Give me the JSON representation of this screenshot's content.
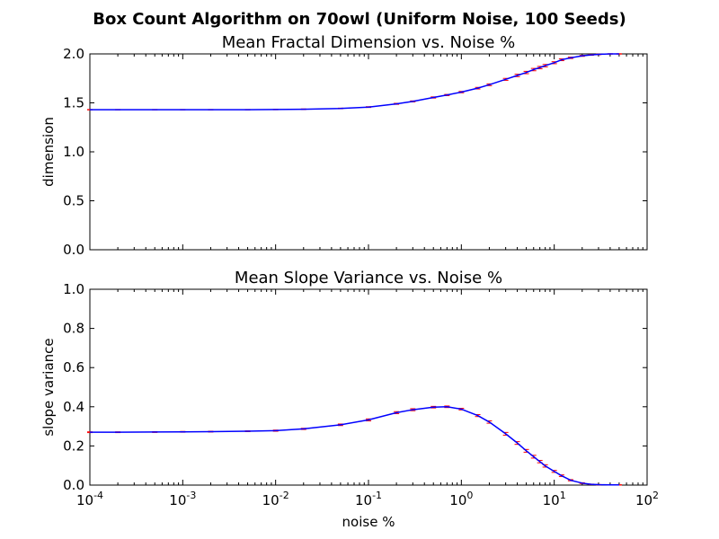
{
  "figure": {
    "suptitle": "Box Count Algorithm on 70owl (Uniform Noise, 100 Seeds)",
    "xlabel": "noise %",
    "line_color": "#0000ff",
    "error_color": "#ff0000"
  },
  "chart_data": [
    {
      "type": "line",
      "title": "Mean Fractal Dimension vs. Noise %",
      "xlabel": "",
      "ylabel": "dimension",
      "xscale": "log",
      "xlim": [
        0.0001,
        100
      ],
      "ylim": [
        0,
        2
      ],
      "x_ticks": [
        {
          "base": "10",
          "exp": "-4",
          "value": 0.0001
        },
        {
          "base": "10",
          "exp": "-3",
          "value": 0.001
        },
        {
          "base": "10",
          "exp": "-2",
          "value": 0.01
        },
        {
          "base": "10",
          "exp": "-1",
          "value": 0.1
        },
        {
          "base": "10",
          "exp": "0",
          "value": 1
        },
        {
          "base": "10",
          "exp": "1",
          "value": 10
        },
        {
          "base": "10",
          "exp": "2",
          "value": 100
        }
      ],
      "x_tick_labels_visible": false,
      "y_ticks": [
        "0.0",
        "0.5",
        "1.0",
        "1.5",
        "2.0"
      ],
      "grid": false,
      "x": [
        0.0001,
        0.0002,
        0.0005,
        0.001,
        0.002,
        0.005,
        0.01,
        0.02,
        0.05,
        0.1,
        0.2,
        0.3,
        0.5,
        0.7,
        1,
        1.5,
        2,
        3,
        4,
        5,
        6,
        7,
        8,
        10,
        12,
        15,
        20,
        25,
        30,
        40,
        50
      ],
      "y": [
        1.43,
        1.43,
        1.43,
        1.43,
        1.43,
        1.43,
        1.432,
        1.435,
        1.443,
        1.457,
        1.49,
        1.515,
        1.555,
        1.58,
        1.61,
        1.65,
        1.685,
        1.74,
        1.78,
        1.81,
        1.84,
        1.86,
        1.88,
        1.91,
        1.94,
        1.96,
        1.98,
        1.99,
        1.995,
        2.0,
        2.0
      ],
      "yerr": [
        0.002,
        0.002,
        0.002,
        0.002,
        0.002,
        0.002,
        0.002,
        0.003,
        0.003,
        0.004,
        0.005,
        0.005,
        0.006,
        0.006,
        0.007,
        0.008,
        0.009,
        0.01,
        0.012,
        0.012,
        0.012,
        0.012,
        0.012,
        0.01,
        0.009,
        0.007,
        0.005,
        0.004,
        0.003,
        0.002,
        0.002
      ]
    },
    {
      "type": "line",
      "title": "Mean Slope Variance vs. Noise %",
      "xlabel": "noise %",
      "ylabel": "slope variance",
      "xscale": "log",
      "xlim": [
        0.0001,
        100
      ],
      "ylim": [
        0,
        1
      ],
      "x_ticks": [
        {
          "base": "10",
          "exp": "-4",
          "value": 0.0001
        },
        {
          "base": "10",
          "exp": "-3",
          "value": 0.001
        },
        {
          "base": "10",
          "exp": "-2",
          "value": 0.01
        },
        {
          "base": "10",
          "exp": "-1",
          "value": 0.1
        },
        {
          "base": "10",
          "exp": "0",
          "value": 1
        },
        {
          "base": "10",
          "exp": "1",
          "value": 10
        },
        {
          "base": "10",
          "exp": "2",
          "value": 100
        }
      ],
      "x_tick_labels_visible": true,
      "y_ticks": [
        "0.0",
        "0.2",
        "0.4",
        "0.6",
        "0.8",
        "1.0"
      ],
      "grid": false,
      "x": [
        0.0001,
        0.0002,
        0.0005,
        0.001,
        0.002,
        0.005,
        0.01,
        0.02,
        0.05,
        0.1,
        0.2,
        0.3,
        0.5,
        0.7,
        1,
        1.5,
        2,
        3,
        4,
        5,
        6,
        7,
        8,
        10,
        12,
        15,
        20,
        25,
        30,
        40,
        50
      ],
      "y": [
        0.27,
        0.27,
        0.271,
        0.272,
        0.273,
        0.275,
        0.278,
        0.287,
        0.308,
        0.333,
        0.37,
        0.385,
        0.398,
        0.4,
        0.388,
        0.355,
        0.322,
        0.262,
        0.215,
        0.175,
        0.145,
        0.12,
        0.098,
        0.07,
        0.048,
        0.025,
        0.01,
        0.004,
        0.002,
        0.001,
        0.001
      ],
      "yerr": [
        0.002,
        0.002,
        0.002,
        0.002,
        0.002,
        0.002,
        0.003,
        0.003,
        0.004,
        0.005,
        0.005,
        0.005,
        0.004,
        0.004,
        0.004,
        0.005,
        0.006,
        0.007,
        0.007,
        0.007,
        0.007,
        0.006,
        0.006,
        0.005,
        0.004,
        0.003,
        0.002,
        0.001,
        0.001,
        0.001,
        0.001
      ]
    }
  ]
}
